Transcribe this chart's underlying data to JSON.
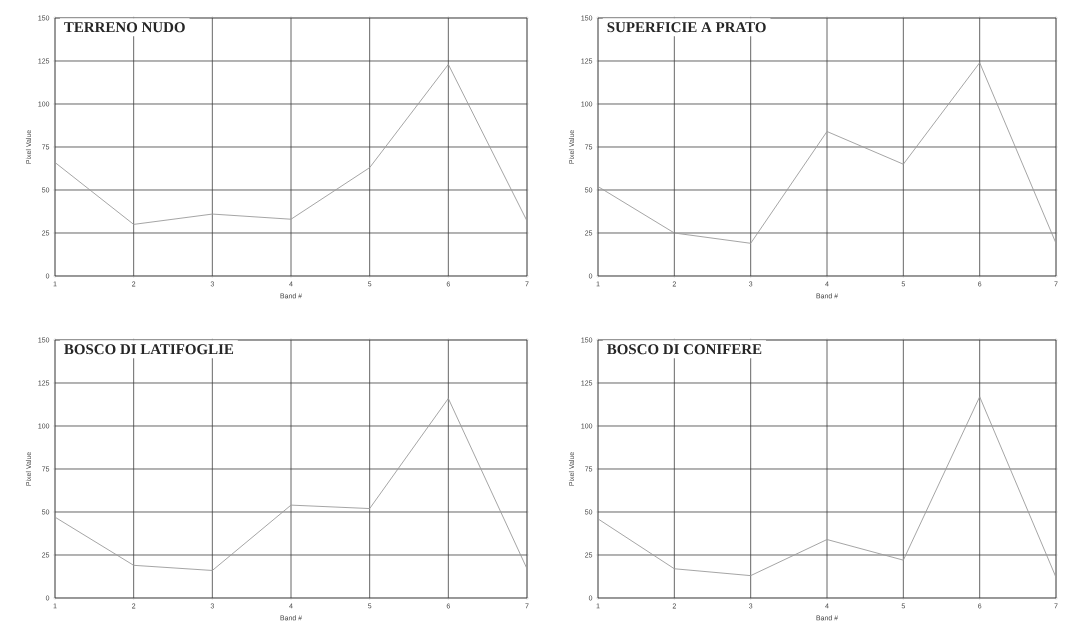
{
  "chart_data": [
    {
      "type": "line",
      "title": "TERRENO NUDO",
      "xlabel": "Band #",
      "ylabel": "Pixel Value",
      "x": [
        1,
        2,
        3,
        4,
        5,
        6,
        7
      ],
      "xlim": [
        1,
        7
      ],
      "xticks": [
        1,
        2,
        3,
        4,
        5,
        6,
        7
      ],
      "ylim": [
        0,
        150
      ],
      "yticks": [
        0,
        25,
        50,
        75,
        100,
        125,
        150
      ],
      "grid": true,
      "marker": "none",
      "series": [
        {
          "color": "#9a9a9a",
          "values": [
            66,
            30,
            36,
            33,
            63,
            123,
            32
          ]
        }
      ]
    },
    {
      "type": "line",
      "title": "SUPERFICIE A PRATO",
      "xlabel": "Band #",
      "ylabel": "Pixel Value",
      "x": [
        1,
        2,
        3,
        4,
        5,
        6,
        7
      ],
      "xlim": [
        1,
        7
      ],
      "xticks": [
        1,
        2,
        3,
        4,
        5,
        6,
        7
      ],
      "ylim": [
        0,
        150
      ],
      "yticks": [
        0,
        25,
        50,
        75,
        100,
        125,
        150
      ],
      "grid": true,
      "marker": "none",
      "series": [
        {
          "color": "#9a9a9a",
          "values": [
            52,
            25,
            19,
            84,
            65,
            124,
            19
          ]
        }
      ]
    },
    {
      "type": "line",
      "title": "BOSCO DI LATIFOGLIE",
      "xlabel": "Band #",
      "ylabel": "Pixel Value",
      "x": [
        1,
        2,
        3,
        4,
        5,
        6,
        7
      ],
      "xlim": [
        1,
        7
      ],
      "xticks": [
        1,
        2,
        3,
        4,
        5,
        6,
        7
      ],
      "ylim": [
        0,
        150
      ],
      "yticks": [
        0,
        25,
        50,
        75,
        100,
        125,
        150
      ],
      "grid": true,
      "marker": "none",
      "series": [
        {
          "color": "#9a9a9a",
          "values": [
            47,
            19,
            16,
            54,
            52,
            116,
            17
          ]
        }
      ]
    },
    {
      "type": "line",
      "title": "BOSCO DI CONIFERE",
      "xlabel": "Band #",
      "ylabel": "Pixel Value",
      "x": [
        1,
        2,
        3,
        4,
        5,
        6,
        7
      ],
      "xlim": [
        1,
        7
      ],
      "xticks": [
        1,
        2,
        3,
        4,
        5,
        6,
        7
      ],
      "ylim": [
        0,
        150
      ],
      "yticks": [
        0,
        25,
        50,
        75,
        100,
        125,
        150
      ],
      "grid": true,
      "marker": "none",
      "series": [
        {
          "color": "#9a9a9a",
          "values": [
            46,
            17,
            13,
            34,
            22,
            117,
            12
          ]
        }
      ]
    }
  ]
}
